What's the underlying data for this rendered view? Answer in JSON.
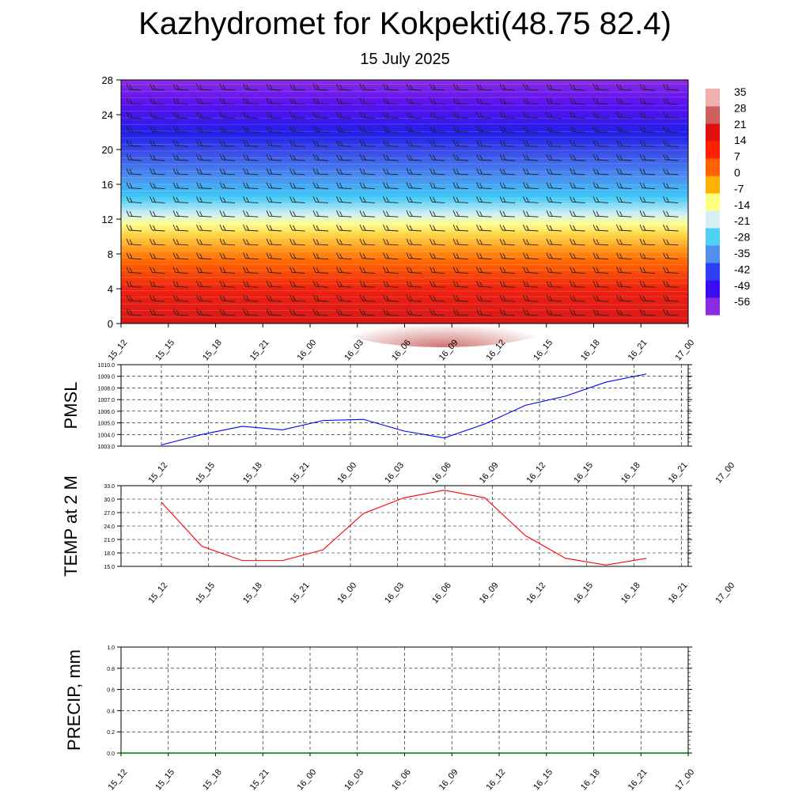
{
  "title": "Kazhydromet for Kokpekti(48.75 82.4)",
  "subtitle": "15 July 2025",
  "chart_data": [
    {
      "type": "heatmap",
      "x_labels": [
        "15_12",
        "15_15",
        "15_18",
        "15_21",
        "16_00",
        "16_03",
        "16_06",
        "16_09",
        "16_12",
        "16_15",
        "16_18",
        "16_21",
        "17_00"
      ],
      "ylim": [
        0,
        28
      ],
      "y_ticks": [
        "0",
        "4",
        "8",
        "12",
        "16",
        "20",
        "24",
        "28"
      ],
      "colorbar_labels": [
        "35",
        "28",
        "21",
        "14",
        "7",
        "0",
        "-7",
        "-14",
        "-21",
        "-28",
        "-35",
        "-42",
        "-49",
        "-56"
      ],
      "colorbar_colors": [
        "#8a2be2",
        "#3a0df0",
        "#2f3ff5",
        "#4f8ff0",
        "#4fd0f5",
        "#d8eef5",
        "#ffff80",
        "#ffb000",
        "#ff6000",
        "#ff2000",
        "#e01010",
        "#d06060",
        "#f0b0b0"
      ],
      "grid": false
    },
    {
      "type": "line",
      "ylabel": "PMSL",
      "x_labels": [
        "15_12",
        "15_15",
        "15_18",
        "15_21",
        "16_00",
        "16_03",
        "16_06",
        "16_09",
        "16_12",
        "16_15",
        "16_18",
        "16_21",
        "17_00"
      ],
      "values": [
        1003.1,
        1004.0,
        1004.7,
        1004.4,
        1005.2,
        1005.3,
        1004.3,
        1003.7,
        1004.9,
        1006.5,
        1007.3,
        1008.5,
        1009.2
      ],
      "ylim": [
        1003.0,
        1010.0
      ],
      "y_ticks": [
        "1003.0",
        "1004.0",
        "1005.0",
        "1006.0",
        "1007.0",
        "1008.0",
        "1009.0",
        "1010.0"
      ],
      "color": "#0000ff",
      "grid": true
    },
    {
      "type": "line",
      "ylabel": "TEMP at 2 M",
      "x_labels": [
        "15_12",
        "15_15",
        "15_18",
        "15_21",
        "16_00",
        "16_03",
        "16_06",
        "16_09",
        "16_12",
        "16_15",
        "16_18",
        "16_21",
        "17_00"
      ],
      "values": [
        29.3,
        19.5,
        16.3,
        16.3,
        18.7,
        26.8,
        30.3,
        32.0,
        30.3,
        21.9,
        16.8,
        15.3,
        16.8
      ],
      "ylim": [
        15.0,
        33.0
      ],
      "y_ticks": [
        "15.0",
        "18.0",
        "21.0",
        "24.0",
        "27.0",
        "30.0",
        "33.0"
      ],
      "color": "#ff0000",
      "grid": true
    },
    {
      "type": "line",
      "ylabel": "PRECIP, mm",
      "x_labels": [
        "15_12",
        "15_15",
        "15_18",
        "15_21",
        "16_00",
        "16_03",
        "16_06",
        "16_09",
        "16_12",
        "16_15",
        "16_18",
        "16_21",
        "17_00"
      ],
      "values": [
        0,
        0,
        0,
        0,
        0,
        0,
        0,
        0,
        0,
        0,
        0,
        0,
        0
      ],
      "ylim": [
        0.0,
        1.0
      ],
      "y_ticks": [
        "0.0",
        "0.2",
        "0.4",
        "0.6",
        "0.8",
        "1.0"
      ],
      "color": "#007000",
      "grid": true
    }
  ]
}
